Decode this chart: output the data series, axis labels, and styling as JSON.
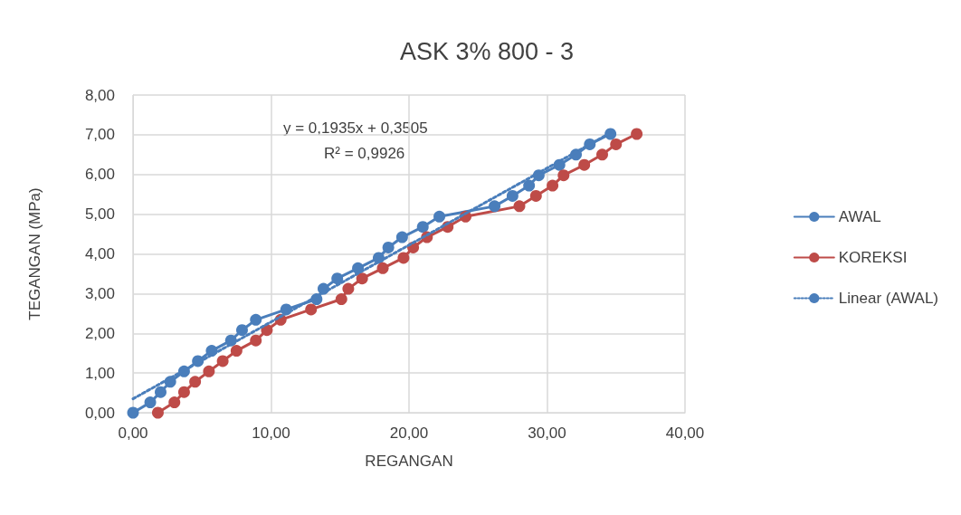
{
  "chart_data": {
    "type": "line",
    "title": "ASK 3% 800 - 3",
    "xlabel": "REGANGAN",
    "ylabel": "TEGANGAN (MPa)",
    "xlim": [
      0,
      40
    ],
    "xticks": [
      {
        "value": 0,
        "label": "0,00"
      },
      {
        "value": 10,
        "label": "10,00"
      },
      {
        "value": 20,
        "label": "20,00"
      },
      {
        "value": 30,
        "label": "30,00"
      },
      {
        "value": 40,
        "label": "40,00"
      }
    ],
    "ylim": [
      0,
      8
    ],
    "yticks": [
      {
        "value": 0,
        "label": "0,00"
      },
      {
        "value": 1,
        "label": "1,00"
      },
      {
        "value": 2,
        "label": "2,00"
      },
      {
        "value": 3,
        "label": "3,00"
      },
      {
        "value": 4,
        "label": "4,00"
      },
      {
        "value": 5,
        "label": "5,00"
      },
      {
        "value": 6,
        "label": "6,00"
      },
      {
        "value": 7,
        "label": "7,00"
      },
      {
        "value": 8,
        "label": "8,00"
      }
    ],
    "grid": true,
    "legend": "right",
    "marker": "circle",
    "line_style": "solid",
    "annotations": [
      "y = 0,1935x + 0,3505",
      "R² = 0,9926"
    ],
    "series": [
      {
        "name": "AWAL",
        "color": "#4a7ebb",
        "x": [
          0,
          1.25,
          2.0,
          2.7,
          3.7,
          4.7,
          5.7,
          7.1,
          7.9,
          8.9,
          11.1,
          13.3,
          13.8,
          14.8,
          16.3,
          17.8,
          18.5,
          19.5,
          21.0,
          22.2,
          26.2,
          27.5,
          28.7,
          29.4,
          30.9,
          32.1,
          33.1,
          34.6
        ],
        "values": [
          0,
          0.26,
          0.52,
          0.78,
          1.04,
          1.3,
          1.56,
          1.82,
          2.08,
          2.34,
          2.6,
          2.86,
          3.12,
          3.38,
          3.64,
          3.9,
          4.16,
          4.42,
          4.68,
          4.94,
          5.2,
          5.46,
          5.72,
          5.98,
          6.24,
          6.5,
          6.76,
          7.02
        ]
      },
      {
        "name": "KOREKSI",
        "color": "#be4b48",
        "x": [
          1.8,
          3.0,
          3.7,
          4.5,
          5.5,
          6.5,
          7.5,
          8.9,
          9.7,
          10.7,
          12.9,
          15.1,
          15.6,
          16.6,
          18.1,
          19.6,
          20.3,
          21.3,
          22.8,
          24.1,
          28.0,
          29.2,
          30.4,
          31.2,
          32.7,
          34.0,
          35.0,
          36.5
        ],
        "values": [
          0,
          0.26,
          0.52,
          0.78,
          1.04,
          1.3,
          1.56,
          1.82,
          2.08,
          2.34,
          2.6,
          2.86,
          3.12,
          3.38,
          3.64,
          3.9,
          4.16,
          4.42,
          4.68,
          4.94,
          5.2,
          5.46,
          5.72,
          5.98,
          6.24,
          6.5,
          6.76,
          7.02
        ]
      },
      {
        "name": "Linear (AWAL)",
        "color": "#4a7ebb",
        "marker": "none",
        "line_style": "dotted",
        "x": [
          0,
          34.6
        ],
        "values": [
          0.35,
          7.05
        ]
      }
    ]
  }
}
